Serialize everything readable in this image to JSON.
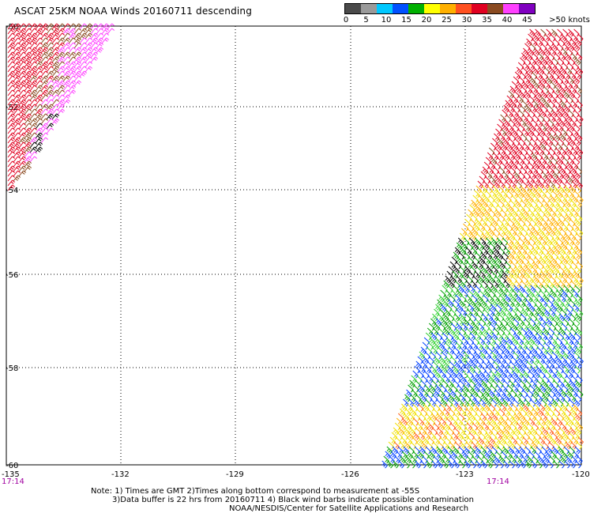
{
  "title": "ASCAT 25KM NOAA Winds 20160711 descending",
  "colorbar": {
    "labels": [
      "0",
      "5",
      "10",
      "15",
      "20",
      "25",
      "30",
      "35",
      "40",
      "45"
    ],
    "end_label": ">50 knots",
    "colors": [
      "#4a4a4a",
      "#9a9a9a",
      "#00c8ff",
      "#0050ff",
      "#00b000",
      "#ffff00",
      "#ffb000",
      "#ff5020",
      "#e00020",
      "#8a4a20",
      "#ff40ff",
      "#8000c0"
    ]
  },
  "map": {
    "lon_labels": [
      "-135",
      "-132",
      "-129",
      "-126",
      "-123",
      "-120"
    ],
    "lat_labels": [
      "-50",
      "-52",
      "-54",
      "-56",
      "-58",
      "-60"
    ],
    "time_labels": [
      "17:14",
      "17:14"
    ],
    "time_label_color": "#a000a0"
  },
  "notes": {
    "line1": "Note: 1) Times are GMT 2)Times along bottom correspond to measurement at -55S",
    "line2": "3)Data buffer is 22 hrs from 20160711 4) Black wind barbs indicate possible contamination",
    "line3": "NOAA/NESDIS/Center for Satellite Applications and Research"
  }
}
